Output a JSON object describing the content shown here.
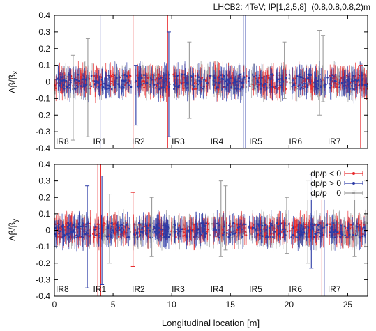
{
  "chart_data": [
    {
      "type": "scatter",
      "title": "LHCB2: 4TeV; IP[1,2,5,8]=(0.8,0.8,0.8,2)m",
      "ylabel_main": "Δβ/β",
      "ylabel_sub": "x",
      "xlim": [
        0,
        26.7
      ],
      "ylim": [
        -0.4,
        0.4
      ],
      "yticks": [
        "0.4",
        "0.3",
        "0.2",
        "0.1",
        "0",
        "-0.1",
        "-0.2",
        "-0.3",
        "-0.4"
      ],
      "ir_labels": [
        {
          "label": "IR8",
          "x": 0.0
        },
        {
          "label": "IR1",
          "x": 3.3
        },
        {
          "label": "IR2",
          "x": 6.6
        },
        {
          "label": "IR3",
          "x": 10.0
        },
        {
          "label": "IR4",
          "x": 13.3
        },
        {
          "label": "IR5",
          "x": 16.6
        },
        {
          "label": "IR6",
          "x": 20.0
        },
        {
          "label": "IR7",
          "x": 23.3
        }
      ],
      "spikes": [
        {
          "x": 1.6,
          "series": "gray",
          "lo": -0.35,
          "hi": 0.16
        },
        {
          "x": 2.85,
          "series": "gray",
          "lo": -0.33,
          "hi": 0.26
        },
        {
          "x": 3.9,
          "series": "blue",
          "lo": -0.4,
          "hi": 0.4
        },
        {
          "x": 6.7,
          "series": "red",
          "lo": -0.4,
          "hi": 0.4
        },
        {
          "x": 6.95,
          "series": "blue",
          "lo": -0.26,
          "hi": 0.1
        },
        {
          "x": 9.65,
          "series": "red",
          "lo": -0.4,
          "hi": 0.4
        },
        {
          "x": 9.75,
          "series": "blue",
          "lo": -0.33,
          "hi": 0.3
        },
        {
          "x": 11.5,
          "series": "gray",
          "lo": -0.22,
          "hi": 0.24
        },
        {
          "x": 16.1,
          "series": "blue",
          "lo": -0.4,
          "hi": 0.4
        },
        {
          "x": 16.3,
          "series": "blue",
          "lo": -0.4,
          "hi": 0.4
        },
        {
          "x": 19.6,
          "series": "gray",
          "lo": -0.1,
          "hi": 0.24
        },
        {
          "x": 22.6,
          "series": "gray",
          "lo": -0.2,
          "hi": 0.31
        },
        {
          "x": 22.9,
          "series": "gray",
          "lo": -0.12,
          "hi": 0.28
        },
        {
          "x": 26.1,
          "series": "red",
          "lo": -0.4,
          "hi": 0.1
        }
      ]
    },
    {
      "type": "scatter",
      "xlabel": "Longitudinal location [m]",
      "ylabel_main": "Δβ/β",
      "ylabel_sub": "y",
      "xlim": [
        0,
        26.7
      ],
      "ylim": [
        -0.4,
        0.4
      ],
      "xticks": [
        "0",
        "5",
        "10",
        "15",
        "20",
        "25"
      ],
      "yticks": [
        "0.4",
        "0.3",
        "0.2",
        "0.1",
        "0",
        "-0.1",
        "-0.2",
        "-0.3",
        "-0.4"
      ],
      "ir_labels": [
        {
          "label": "IR8",
          "x": 0.0
        },
        {
          "label": "IR1",
          "x": 3.3
        },
        {
          "label": "IR2",
          "x": 6.6
        },
        {
          "label": "IR3",
          "x": 10.0
        },
        {
          "label": "IR4",
          "x": 13.3
        },
        {
          "label": "IR5",
          "x": 16.6
        },
        {
          "label": "IR6",
          "x": 20.0
        },
        {
          "label": "IR7",
          "x": 23.3
        }
      ],
      "legend": [
        {
          "label": "dp/p < 0",
          "color": "#e8292b"
        },
        {
          "label": "dp/p > 0",
          "color": "#2b3aa6"
        },
        {
          "label": "dp/p = 0",
          "color": "#9a9a9a"
        }
      ],
      "legend_position": "top-right",
      "spikes": [
        {
          "x": 2.8,
          "series": "blue",
          "lo": -0.35,
          "hi": 0.27
        },
        {
          "x": 3.7,
          "series": "red",
          "lo": -0.4,
          "hi": 0.4
        },
        {
          "x": 3.95,
          "series": "red",
          "lo": -0.4,
          "hi": 0.4
        },
        {
          "x": 4.05,
          "series": "blue",
          "lo": -0.33,
          "hi": 0.33
        },
        {
          "x": 4.7,
          "series": "gray",
          "lo": -0.2,
          "hi": 0.22
        },
        {
          "x": 6.7,
          "series": "red",
          "lo": -0.22,
          "hi": 0.23
        },
        {
          "x": 8.3,
          "series": "gray",
          "lo": -0.16,
          "hi": 0.2
        },
        {
          "x": 14.2,
          "series": "gray",
          "lo": -0.16,
          "hi": 0.3
        },
        {
          "x": 14.6,
          "series": "gray",
          "lo": -0.12,
          "hi": 0.27
        },
        {
          "x": 19.8,
          "series": "gray",
          "lo": -0.14,
          "hi": 0.2
        },
        {
          "x": 21.6,
          "series": "gray",
          "lo": -0.2,
          "hi": 0.3
        },
        {
          "x": 21.9,
          "series": "blue",
          "lo": -0.23,
          "hi": 0.34
        },
        {
          "x": 22.8,
          "series": "red",
          "lo": -0.4,
          "hi": 0.34
        },
        {
          "x": 23.0,
          "series": "blue",
          "lo": -0.4,
          "hi": 0.22
        },
        {
          "x": 25.6,
          "series": "gray",
          "lo": -0.16,
          "hi": 0.24
        }
      ]
    }
  ],
  "colors": {
    "neg": "#e8292b",
    "pos": "#2b3aa6",
    "zero": "#9a9a9a"
  }
}
